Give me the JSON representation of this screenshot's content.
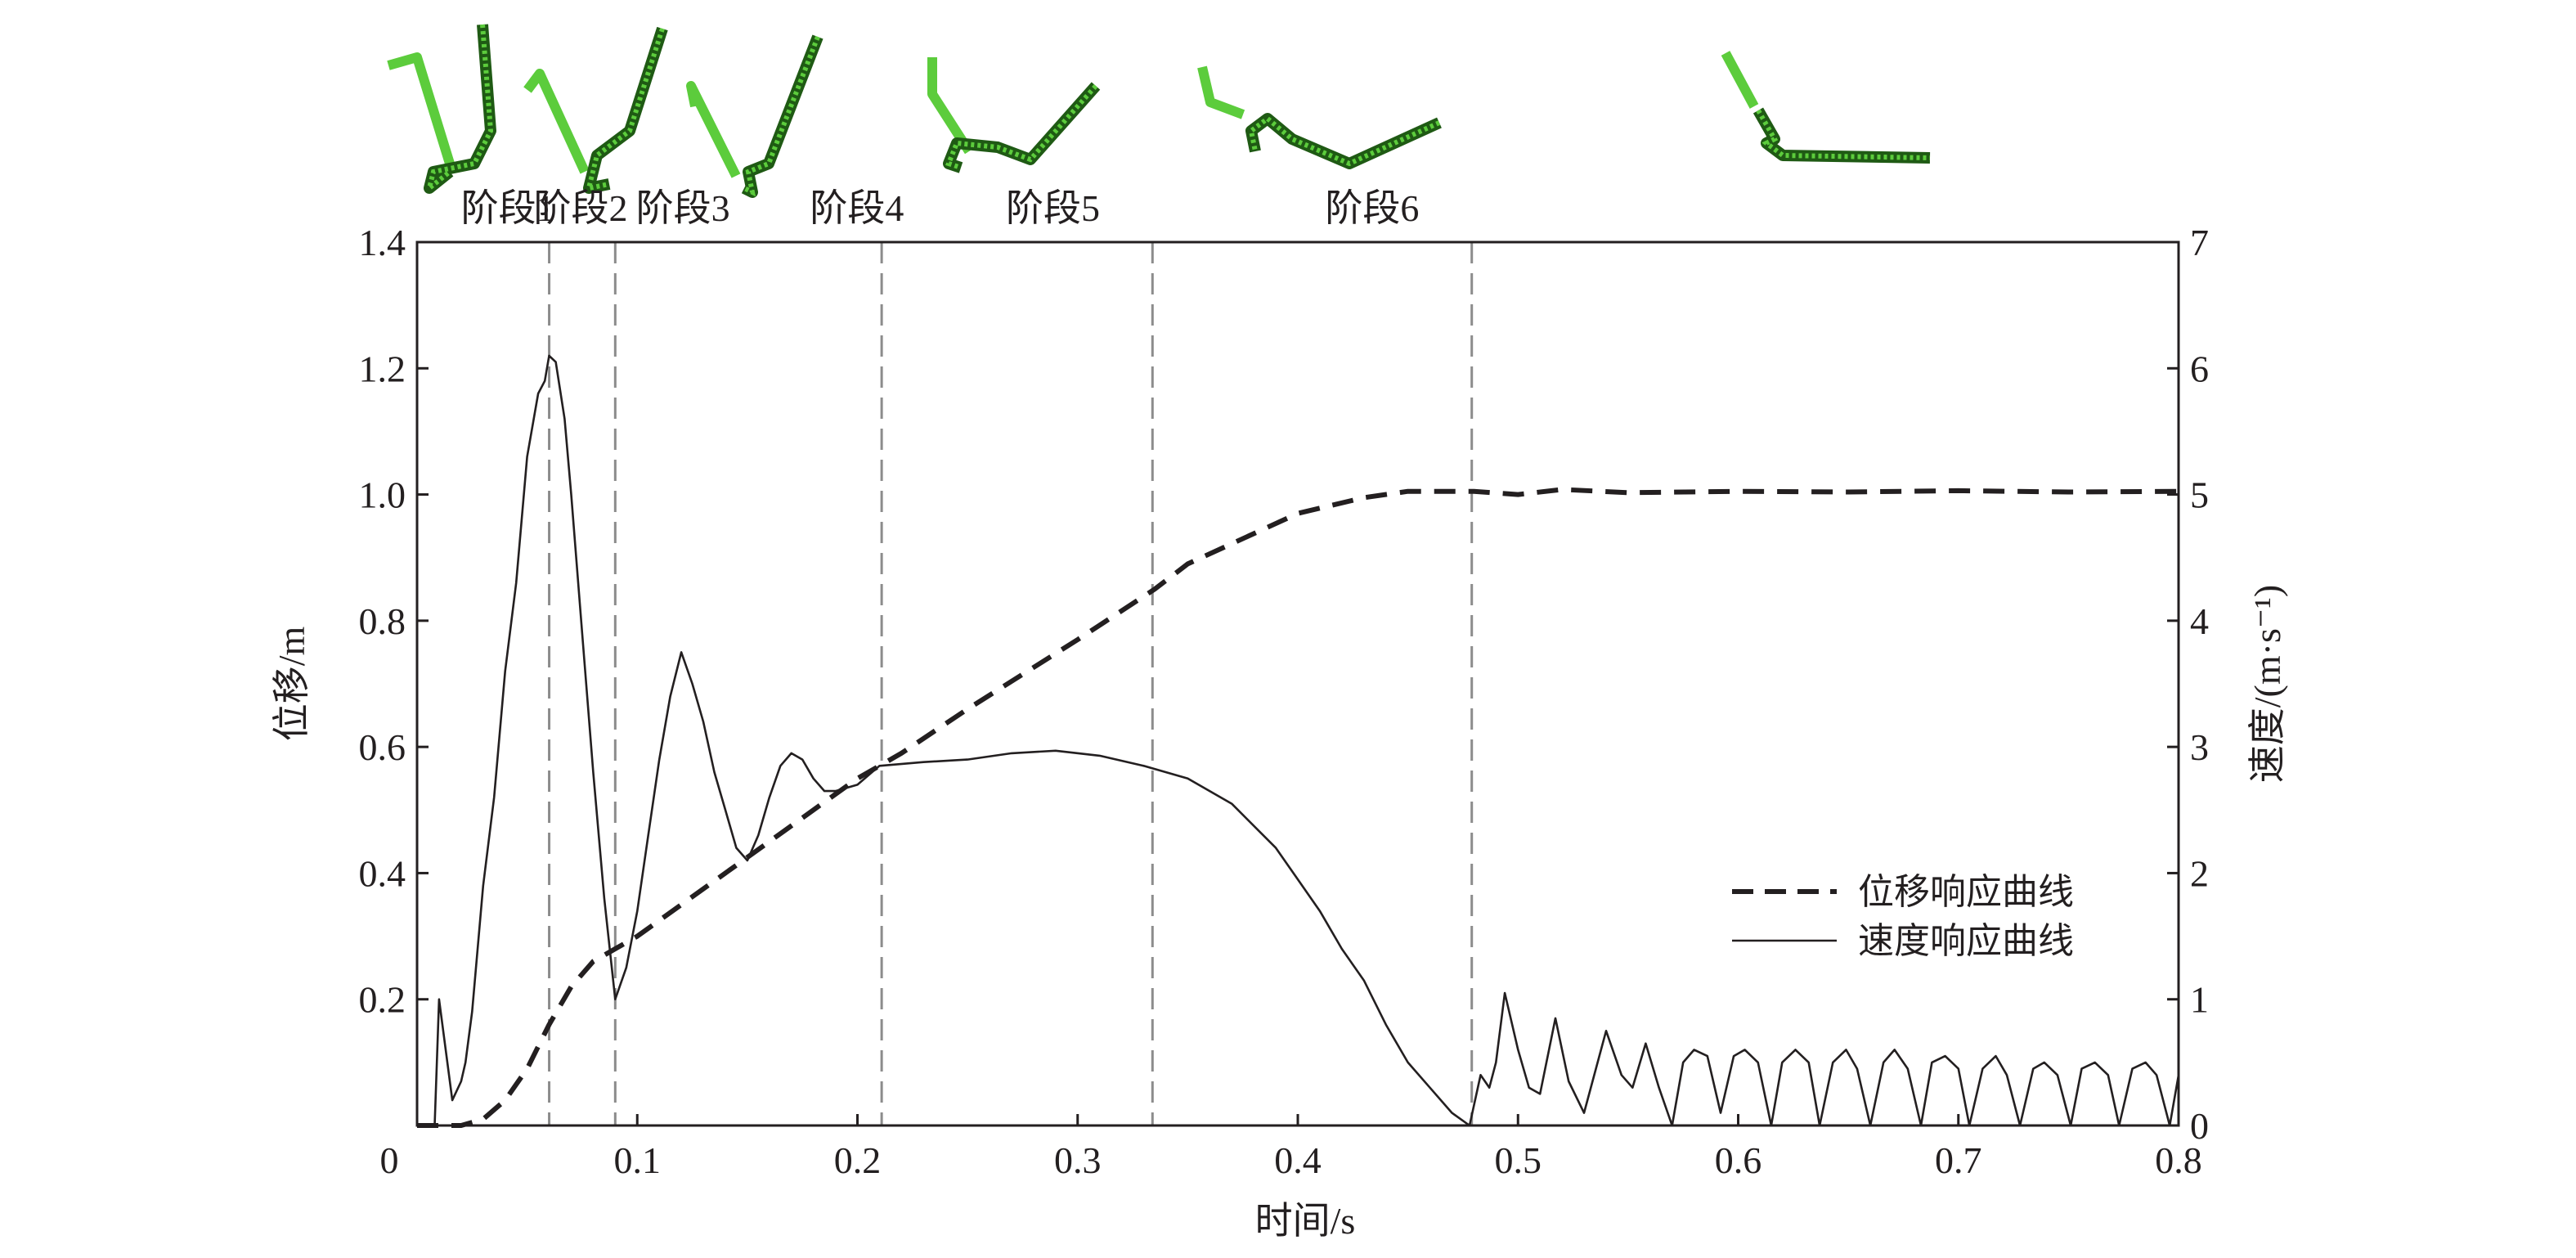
{
  "chart_data": {
    "type": "line",
    "title": "",
    "xlabel": "时间/s",
    "ylabel_left": "位移/m",
    "ylabel_right": "速度/(m·s⁻¹)",
    "xlim": [
      0,
      0.8
    ],
    "ylim_left": [
      0,
      1.4
    ],
    "ylim_right": [
      0,
      7
    ],
    "x_ticks": [
      "0",
      "0.1",
      "0.2",
      "0.3",
      "0.4",
      "0.5",
      "0.6",
      "0.7",
      "0.8"
    ],
    "x_tick_values": [
      0,
      0.1,
      0.2,
      0.3,
      0.4,
      0.5,
      0.6,
      0.7,
      0.8
    ],
    "y_left_ticks": [
      "0.2",
      "0.4",
      "0.6",
      "0.8",
      "1.0",
      "1.2",
      "1.4"
    ],
    "y_left_tick_values": [
      0.2,
      0.4,
      0.6,
      0.8,
      1.0,
      1.2,
      1.4
    ],
    "y_right_ticks": [
      "0",
      "1",
      "2",
      "3",
      "4",
      "5",
      "6",
      "7"
    ],
    "y_right_tick_values": [
      0,
      1,
      2,
      3,
      4,
      5,
      6,
      7
    ],
    "grid": false,
    "legend_position": "right",
    "phase_boundaries": [
      0.06,
      0.09,
      0.211,
      0.334,
      0.479
    ],
    "phases": [
      {
        "label": "阶段1",
        "t": 0.0175
      },
      {
        "label": "阶段2",
        "t": 0.0505
      },
      {
        "label": "阶段3",
        "t": 0.097
      },
      {
        "label": "阶段4",
        "t": 0.176
      },
      {
        "label": "阶段5",
        "t": 0.265
      },
      {
        "label": "阶段6",
        "t": 0.41
      }
    ],
    "series": [
      {
        "name": "位移响应曲线",
        "axis": "left",
        "style": "dashed",
        "x": [
          0,
          0.02,
          0.03,
          0.04,
          0.05,
          0.06,
          0.07,
          0.08,
          0.09,
          0.1,
          0.12,
          0.14,
          0.16,
          0.18,
          0.2,
          0.22,
          0.25,
          0.3,
          0.335,
          0.35,
          0.4,
          0.43,
          0.45,
          0.48,
          0.5,
          0.52,
          0.55,
          0.6,
          0.65,
          0.7,
          0.75,
          0.8
        ],
        "y": [
          0,
          0,
          0.01,
          0.04,
          0.09,
          0.16,
          0.22,
          0.26,
          0.28,
          0.3,
          0.35,
          0.4,
          0.45,
          0.5,
          0.55,
          0.59,
          0.66,
          0.77,
          0.85,
          0.89,
          0.97,
          0.995,
          1.005,
          1.005,
          1.0,
          1.008,
          1.003,
          1.005,
          1.004,
          1.006,
          1.004,
          1.005
        ]
      },
      {
        "name": "速度响应曲线",
        "axis": "right",
        "style": "solid",
        "x": [
          0,
          0.008,
          0.01,
          0.013,
          0.016,
          0.02,
          0.022,
          0.025,
          0.03,
          0.035,
          0.04,
          0.045,
          0.05,
          0.055,
          0.058,
          0.06,
          0.063,
          0.067,
          0.07,
          0.075,
          0.08,
          0.085,
          0.09,
          0.095,
          0.1,
          0.105,
          0.11,
          0.115,
          0.12,
          0.125,
          0.13,
          0.135,
          0.14,
          0.145,
          0.15,
          0.155,
          0.16,
          0.165,
          0.17,
          0.175,
          0.18,
          0.185,
          0.19,
          0.2,
          0.21,
          0.23,
          0.25,
          0.27,
          0.29,
          0.31,
          0.33,
          0.35,
          0.37,
          0.39,
          0.4,
          0.41,
          0.42,
          0.43,
          0.44,
          0.45,
          0.46,
          0.47,
          0.478,
          0.483,
          0.487,
          0.49,
          0.494,
          0.5,
          0.505,
          0.51,
          0.517,
          0.523,
          0.53,
          0.54,
          0.547,
          0.552,
          0.558,
          0.564,
          0.57,
          0.575,
          0.58,
          0.586,
          0.592,
          0.598,
          0.603,
          0.609,
          0.615,
          0.62,
          0.626,
          0.632,
          0.637,
          0.643,
          0.649,
          0.654,
          0.66,
          0.666,
          0.671,
          0.677,
          0.683,
          0.688,
          0.694,
          0.7,
          0.705,
          0.711,
          0.717,
          0.722,
          0.728,
          0.734,
          0.739,
          0.745,
          0.751,
          0.756,
          0.762,
          0.768,
          0.773,
          0.779,
          0.785,
          0.79,
          0.796,
          0.8
        ],
        "y": [
          0,
          0,
          1.0,
          0.6,
          0.2,
          0.35,
          0.5,
          0.9,
          1.9,
          2.6,
          3.6,
          4.3,
          5.3,
          5.8,
          5.9,
          6.1,
          6.05,
          5.6,
          5.0,
          3.9,
          2.8,
          1.8,
          1.0,
          1.25,
          1.7,
          2.3,
          2.9,
          3.4,
          3.75,
          3.5,
          3.2,
          2.8,
          2.5,
          2.2,
          2.1,
          2.3,
          2.6,
          2.85,
          2.95,
          2.9,
          2.75,
          2.65,
          2.65,
          2.7,
          2.85,
          2.88,
          2.9,
          2.95,
          2.97,
          2.93,
          2.85,
          2.75,
          2.55,
          2.2,
          1.95,
          1.7,
          1.4,
          1.15,
          0.8,
          0.5,
          0.3,
          0.1,
          0.0,
          0.4,
          0.3,
          0.5,
          1.05,
          0.6,
          0.3,
          0.25,
          0.85,
          0.35,
          0.1,
          0.75,
          0.4,
          0.3,
          0.65,
          0.3,
          0.0,
          0.5,
          0.6,
          0.55,
          0.1,
          0.55,
          0.6,
          0.5,
          0.0,
          0.5,
          0.6,
          0.5,
          0.0,
          0.5,
          0.6,
          0.45,
          0.0,
          0.5,
          0.6,
          0.45,
          0.0,
          0.5,
          0.55,
          0.45,
          0.0,
          0.45,
          0.55,
          0.4,
          0.0,
          0.45,
          0.5,
          0.4,
          0.0,
          0.45,
          0.5,
          0.4,
          0.0,
          0.45,
          0.5,
          0.4,
          0.0,
          0.4
        ]
      }
    ],
    "legend": [
      "位移响应曲线",
      "速度响应曲线"
    ]
  },
  "colors": {
    "axis": "#231f20",
    "boundary": "#8c8c8c",
    "thumb_light": "#5ccc3c",
    "thumb_dark": "#1f5a14"
  }
}
